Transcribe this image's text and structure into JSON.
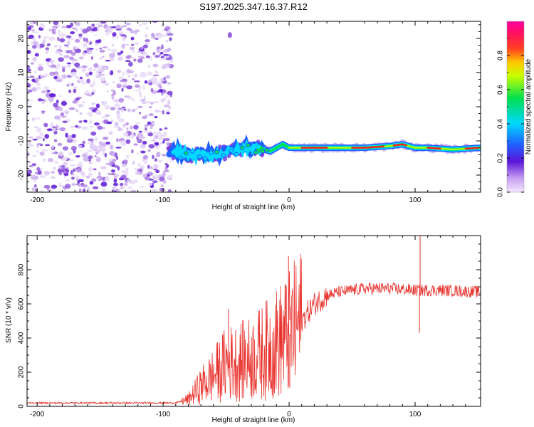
{
  "chart_data": [
    {
      "type": "heatmap",
      "title": "S197.2025.347.16.37.R12",
      "xlabel": "Height of straight line (km)",
      "ylabel": "Frequency (Hz)",
      "xlim": [
        -208,
        152
      ],
      "ylim": [
        -25,
        25
      ],
      "xticks": [
        -200,
        -100,
        0,
        100
      ],
      "xtick_labels": [
        "-200",
        "-100",
        "0",
        "100"
      ],
      "yticks": [
        -20,
        -10,
        0,
        10,
        20
      ],
      "ytick_labels": [
        "-20",
        "-10",
        "0",
        "10",
        "20"
      ],
      "ridge": {
        "x": [
          -95,
          -80,
          -60,
          -45,
          -35,
          -25,
          -15,
          -5,
          0,
          20,
          60,
          80,
          90,
          100,
          110,
          130,
          152
        ],
        "freq_hz": [
          -13,
          -14,
          -14,
          -13,
          -12,
          -12,
          -13,
          -11,
          -12,
          -12,
          -12,
          -11.5,
          -11,
          -12,
          -12,
          -12.5,
          -12
        ]
      },
      "noise_region_x": [
        -208,
        -93
      ]
    },
    {
      "type": "line",
      "xlabel": "Height of straight line (km)",
      "ylabel": "SNR (10 * v/v)",
      "xlim": [
        -208,
        152
      ],
      "ylim": [
        0,
        1000
      ],
      "xticks": [
        -200,
        -100,
        0,
        100
      ],
      "xtick_labels": [
        "-200",
        "-100",
        "0",
        "100"
      ],
      "yticks": [
        0,
        200,
        400,
        600,
        800
      ],
      "ytick_labels": [
        "0",
        "200",
        "400",
        "600",
        "800"
      ],
      "color": "#e8332e",
      "envelope": {
        "x": [
          -208,
          -90,
          -80,
          -70,
          -60,
          -50,
          -40,
          -30,
          -20,
          -10,
          0,
          10,
          20,
          30,
          40,
          60,
          80,
          100,
          120,
          152
        ],
        "y": [
          20,
          20,
          40,
          120,
          180,
          250,
          260,
          280,
          320,
          370,
          420,
          500,
          600,
          650,
          670,
          690,
          690,
          680,
          680,
          670
        ]
      },
      "spikes": [
        {
          "x": -48,
          "y": 570
        },
        {
          "x": -0.5,
          "y": 880
        },
        {
          "x": 0.5,
          "y": 110
        },
        {
          "x": 103.5,
          "y": 430
        },
        {
          "x": 104,
          "y": 1000
        }
      ]
    }
  ],
  "colorbar": {
    "label": "Normalized spectral amplitude",
    "ticks": [
      "0.0",
      "0.2",
      "0.4",
      "0.6",
      "0.8"
    ],
    "tick_values": [
      0,
      0.2,
      0.4,
      0.6,
      0.8
    ],
    "max": 0.97
  }
}
